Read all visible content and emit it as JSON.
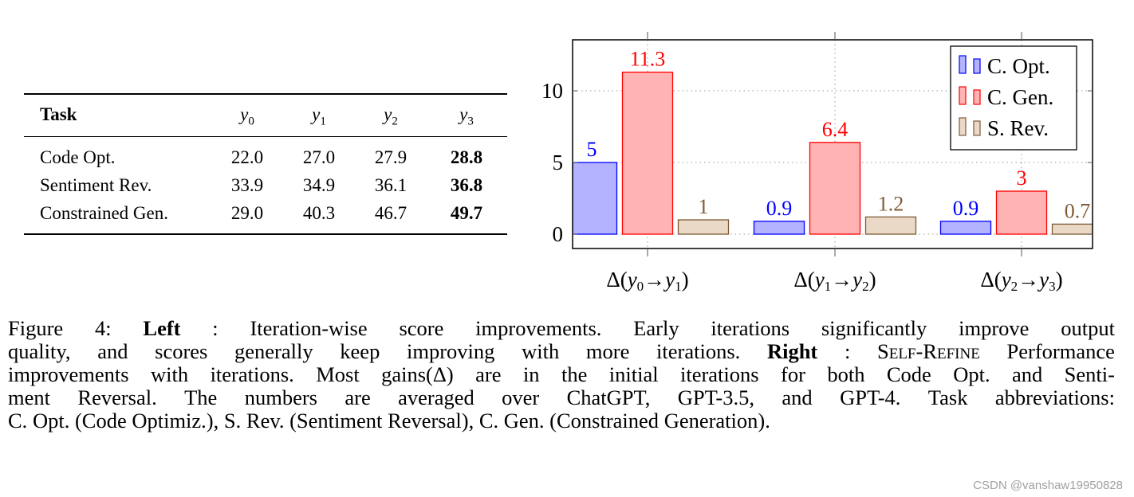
{
  "table": {
    "headers": [
      "Task",
      "y0",
      "y1",
      "y2",
      "y3"
    ],
    "header_subscripts": [
      "",
      "0",
      "1",
      "2",
      "3"
    ],
    "rows": [
      {
        "task": "Code Opt.",
        "values": [
          "22.0",
          "27.0",
          "27.9",
          "28.8"
        ]
      },
      {
        "task": "Sentiment Rev.",
        "values": [
          "33.9",
          "34.9",
          "36.1",
          "36.8"
        ]
      },
      {
        "task": "Constrained Gen.",
        "values": [
          "29.0",
          "40.3",
          "46.7",
          "49.7"
        ]
      }
    ]
  },
  "chart_data": {
    "type": "bar",
    "categories": [
      "Δ(y0→y1)",
      "Δ(y1→y2)",
      "Δ(y2→y3)"
    ],
    "series": [
      {
        "name": "C. Opt.",
        "values": [
          5,
          0.9,
          0.9
        ],
        "color": "#0000ff",
        "fill": "#b3b3ff"
      },
      {
        "name": "C. Gen.",
        "values": [
          11.3,
          6.4,
          3
        ],
        "color": "#ff0000",
        "fill": "#ffb3b3"
      },
      {
        "name": "S. Rev.",
        "values": [
          1,
          1.2,
          0.7
        ],
        "color": "#7f5a34",
        "fill": "#ead9c6"
      }
    ],
    "data_labels": [
      [
        "5",
        "0.9",
        "0.9"
      ],
      [
        "11.3",
        "6.4",
        "3"
      ],
      [
        "1",
        "1.2",
        "0.7"
      ]
    ],
    "yticks": [
      "0",
      "5",
      "10"
    ],
    "ylim": [
      -1,
      13.5
    ],
    "grid": true,
    "legend": "top-right"
  },
  "caption": {
    "lines": [
      [
        {
          "t": "Figure 4: "
        },
        {
          "t": "Left",
          "s": "b"
        },
        {
          "t": ": Iteration-wise score improvements. Early iterations significantly improve output"
        }
      ],
      [
        {
          "t": "quality, and scores generally keep improving with more iterations. "
        },
        {
          "t": "Right",
          "s": "b"
        },
        {
          "t": ": "
        },
        {
          "t": "Self-Refine",
          "s": "sc"
        },
        {
          "t": " Performance"
        }
      ],
      [
        {
          "t": "improvements with iterations. Most gains(Δ) are in the initial iterations for both Code Opt. and Senti-"
        }
      ],
      [
        {
          "t": "ment Reversal. The numbers are averaged over ChatGPT, GPT-3.5, and GPT-4. Task abbreviations:"
        }
      ],
      [
        {
          "t": "C. Opt. (Code Optimiz.), S. Rev. (Sentiment Reversal), C. Gen. (Constrained Generation)."
        }
      ]
    ]
  },
  "watermark": "CSDN @vanshaw19950828"
}
